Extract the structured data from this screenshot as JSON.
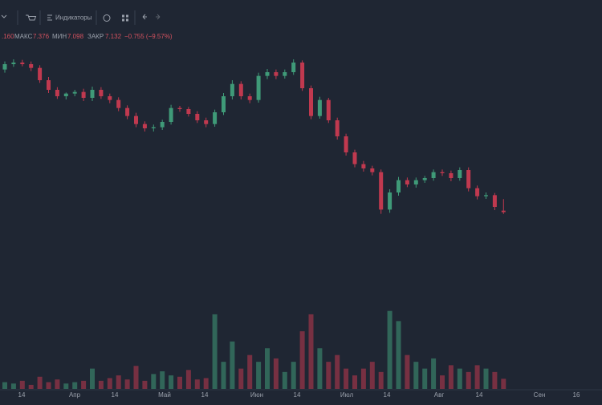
{
  "toolbar": {
    "indicators": "Индикаторы"
  },
  "ohlc_legend": {
    "open": ".160",
    "high_label": "МАКС",
    "high": "7.376",
    "low_label": "МИН",
    "low": "7.098",
    "close_label": "ЗАКР",
    "close": "7.132",
    "change": "−0.755 (−9.57%)"
  },
  "chart_data": {
    "type": "candlestick",
    "open": [
      9.8,
      9.9,
      9.93,
      9.9,
      9.83,
      9.6,
      9.42,
      9.3,
      9.35,
      9.38,
      9.27,
      9.42,
      9.3,
      9.23,
      9.08,
      8.93,
      8.78,
      8.7,
      8.72,
      8.82,
      9.08,
      9.06,
      8.97,
      8.85,
      8.78,
      9.0,
      9.3,
      9.53,
      9.3,
      9.23,
      9.68,
      9.75,
      9.68,
      9.75,
      9.93,
      9.45,
      8.93,
      9.23,
      8.85,
      8.55,
      8.25,
      8.03,
      7.95,
      7.88,
      7.18,
      7.5,
      7.73,
      7.65,
      7.73,
      7.77,
      7.88,
      7.86,
      7.77,
      7.92,
      7.58,
      7.43,
      7.45,
      7.16
    ],
    "high": [
      9.95,
      9.99,
      9.98,
      9.95,
      9.88,
      9.66,
      9.47,
      9.37,
      9.42,
      9.44,
      9.48,
      9.47,
      9.35,
      9.28,
      9.13,
      8.99,
      8.83,
      8.77,
      8.86,
      9.14,
      9.12,
      9.1,
      9.02,
      8.9,
      9.05,
      9.36,
      9.6,
      9.58,
      9.35,
      9.74,
      9.81,
      9.8,
      9.8,
      9.99,
      9.97,
      9.5,
      9.29,
      9.27,
      8.9,
      8.6,
      8.3,
      8.09,
      8.0,
      7.93,
      7.56,
      7.79,
      7.78,
      7.78,
      7.81,
      7.93,
      7.93,
      7.91,
      7.97,
      7.97,
      7.63,
      7.5,
      7.49,
      7.376
    ],
    "low": [
      9.74,
      9.85,
      9.86,
      9.77,
      9.55,
      9.36,
      9.25,
      9.24,
      9.3,
      9.21,
      9.21,
      9.25,
      9.17,
      9.02,
      8.87,
      8.72,
      8.64,
      8.64,
      8.67,
      8.77,
      9.01,
      8.92,
      8.8,
      8.72,
      8.73,
      8.95,
      9.24,
      9.24,
      9.17,
      9.18,
      9.62,
      9.62,
      9.63,
      9.7,
      9.4,
      8.87,
      8.88,
      8.8,
      8.49,
      8.19,
      7.97,
      7.89,
      7.82,
      7.1,
      7.12,
      7.44,
      7.6,
      7.59,
      7.68,
      7.72,
      7.81,
      7.71,
      7.72,
      7.52,
      7.37,
      7.38,
      7.17,
      7.098
    ],
    "close": [
      9.9,
      9.93,
      9.9,
      9.83,
      9.6,
      9.42,
      9.3,
      9.35,
      9.38,
      9.27,
      9.42,
      9.3,
      9.23,
      9.08,
      8.93,
      8.78,
      8.7,
      8.72,
      8.82,
      9.08,
      9.06,
      8.97,
      8.85,
      8.78,
      9.0,
      9.3,
      9.53,
      9.3,
      9.23,
      9.68,
      9.75,
      9.68,
      9.75,
      9.93,
      9.45,
      8.93,
      9.23,
      8.85,
      8.55,
      8.25,
      8.03,
      7.95,
      7.88,
      7.18,
      7.5,
      7.73,
      7.65,
      7.73,
      7.77,
      7.88,
      7.86,
      7.77,
      7.92,
      7.58,
      7.43,
      7.45,
      7.23,
      7.132
    ],
    "volume": [
      10,
      8,
      12,
      6,
      18,
      10,
      14,
      8,
      10,
      12,
      30,
      12,
      16,
      20,
      14,
      34,
      12,
      22,
      26,
      20,
      18,
      28,
      14,
      16,
      110,
      40,
      70,
      30,
      50,
      40,
      60,
      45,
      25,
      40,
      85,
      110,
      60,
      40,
      50,
      30,
      20,
      30,
      40,
      25,
      115,
      100,
      50,
      40,
      30,
      45,
      20,
      35,
      30,
      25,
      35,
      30,
      25,
      15
    ],
    "ylim": [
      5.7,
      10.5
    ],
    "volume_lim": [
      0,
      130
    ],
    "up_color": "#3f9a78",
    "down_color": "#c0394f",
    "xlabels": [
      "14",
      "Апр",
      "14",
      "Май",
      "14",
      "Июн",
      "14",
      "Июл",
      "14",
      "Авг",
      "14",
      "Сен",
      "16"
    ]
  }
}
